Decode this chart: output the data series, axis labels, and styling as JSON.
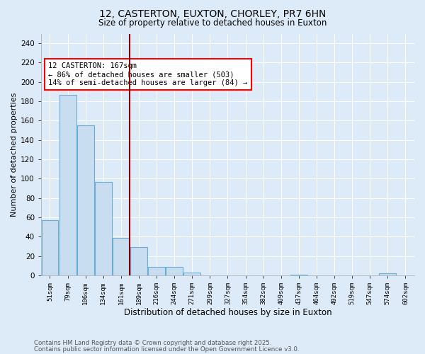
{
  "title1": "12, CASTERTON, EUXTON, CHORLEY, PR7 6HN",
  "title2": "Size of property relative to detached houses in Euxton",
  "xlabel": "Distribution of detached houses by size in Euxton",
  "ylabel": "Number of detached properties",
  "bins": [
    "51sqm",
    "79sqm",
    "106sqm",
    "134sqm",
    "161sqm",
    "189sqm",
    "216sqm",
    "244sqm",
    "271sqm",
    "299sqm",
    "327sqm",
    "354sqm",
    "382sqm",
    "409sqm",
    "437sqm",
    "464sqm",
    "492sqm",
    "519sqm",
    "547sqm",
    "574sqm",
    "602sqm"
  ],
  "values": [
    57,
    187,
    155,
    97,
    39,
    29,
    9,
    9,
    3,
    0,
    0,
    0,
    0,
    0,
    1,
    0,
    0,
    0,
    0,
    2,
    0
  ],
  "bar_color": "#c8ddf0",
  "bar_edge_color": "#6aaed6",
  "red_line_x": 4.5,
  "annotation_text": "12 CASTERTON: 167sqm\n← 86% of detached houses are smaller (503)\n14% of semi-detached houses are larger (84) →",
  "annotation_box_color": "white",
  "annotation_box_edge": "red",
  "ylim": [
    0,
    250
  ],
  "yticks": [
    0,
    20,
    40,
    60,
    80,
    100,
    120,
    140,
    160,
    180,
    200,
    220,
    240
  ],
  "grid_color": "white",
  "footer1": "Contains HM Land Registry data © Crown copyright and database right 2025.",
  "footer2": "Contains public sector information licensed under the Open Government Licence v3.0.",
  "bg_color": "#ddeaf7",
  "plot_bg_color": "#ddeaf7"
}
